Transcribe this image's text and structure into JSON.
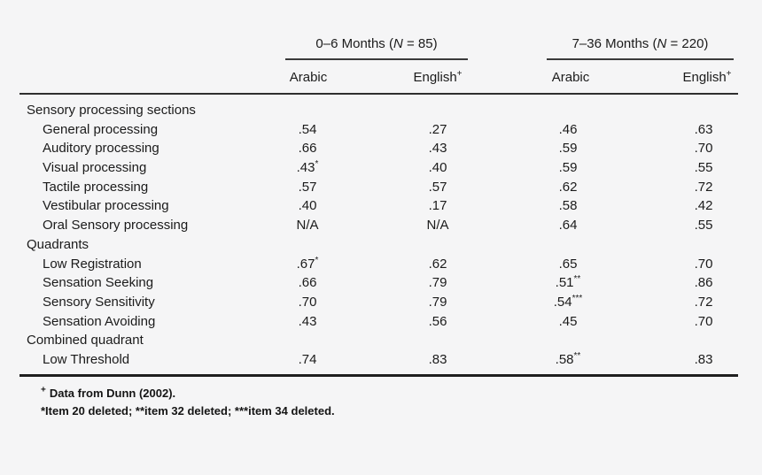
{
  "table": {
    "groups": [
      {
        "pre": "0–6 Months (",
        "n": "N",
        "post": " = 85)",
        "col1": "Arabic",
        "col2": "English",
        "col2_sup": "+"
      },
      {
        "pre": "7–36 Months (",
        "n": "N",
        "post": " = 220)",
        "col1": "Arabic",
        "col2": "English",
        "col2_sup": "+"
      }
    ],
    "sections": [
      {
        "header": "Sensory processing sections",
        "rows": [
          {
            "label": "General processing",
            "cells": [
              {
                "v": ".54"
              },
              {
                "v": ".27"
              },
              {
                "v": ".46"
              },
              {
                "v": ".63"
              }
            ]
          },
          {
            "label": "Auditory processing",
            "cells": [
              {
                "v": ".66"
              },
              {
                "v": ".43"
              },
              {
                "v": ".59"
              },
              {
                "v": ".70"
              }
            ]
          },
          {
            "label": "Visual processing",
            "cells": [
              {
                "v": ".43",
                "sup": "*"
              },
              {
                "v": ".40"
              },
              {
                "v": ".59"
              },
              {
                "v": ".55"
              }
            ]
          },
          {
            "label": "Tactile processing",
            "cells": [
              {
                "v": ".57"
              },
              {
                "v": ".57"
              },
              {
                "v": ".62"
              },
              {
                "v": ".72"
              }
            ]
          },
          {
            "label": "Vestibular processing",
            "cells": [
              {
                "v": ".40"
              },
              {
                "v": ".17"
              },
              {
                "v": ".58"
              },
              {
                "v": ".42"
              }
            ]
          },
          {
            "label": "Oral Sensory processing",
            "cells": [
              {
                "v": "N/A"
              },
              {
                "v": "N/A"
              },
              {
                "v": ".64"
              },
              {
                "v": ".55"
              }
            ]
          }
        ]
      },
      {
        "header": "Quadrants",
        "rows": [
          {
            "label": "Low Registration",
            "cells": [
              {
                "v": ".67",
                "sup": "*"
              },
              {
                "v": ".62"
              },
              {
                "v": ".65"
              },
              {
                "v": ".70"
              }
            ]
          },
          {
            "label": "Sensation Seeking",
            "cells": [
              {
                "v": ".66"
              },
              {
                "v": ".79"
              },
              {
                "v": ".51",
                "sup": "**"
              },
              {
                "v": ".86"
              }
            ]
          },
          {
            "label": "Sensory Sensitivity",
            "cells": [
              {
                "v": ".70"
              },
              {
                "v": ".79"
              },
              {
                "v": ".54",
                "sup": "***"
              },
              {
                "v": ".72"
              }
            ]
          },
          {
            "label": "Sensation Avoiding",
            "cells": [
              {
                "v": ".43"
              },
              {
                "v": ".56"
              },
              {
                "v": ".45"
              },
              {
                "v": ".70"
              }
            ]
          }
        ]
      },
      {
        "header": "Combined quadrant",
        "rows": [
          {
            "label": "Low Threshold",
            "cells": [
              {
                "v": ".74"
              },
              {
                "v": ".83"
              },
              {
                "v": ".58",
                "sup": "**"
              },
              {
                "v": ".83"
              }
            ]
          }
        ]
      }
    ]
  },
  "footnotes": {
    "line1_sup": "+",
    "line1_text": "Data from Dunn (2002).",
    "line2": "*Item 20 deleted; **item 32 deleted; ***item 34 deleted."
  },
  "colors": {
    "background": "#f5f5f6",
    "text": "#1b1b1b",
    "rule": "#2e2e2e"
  }
}
